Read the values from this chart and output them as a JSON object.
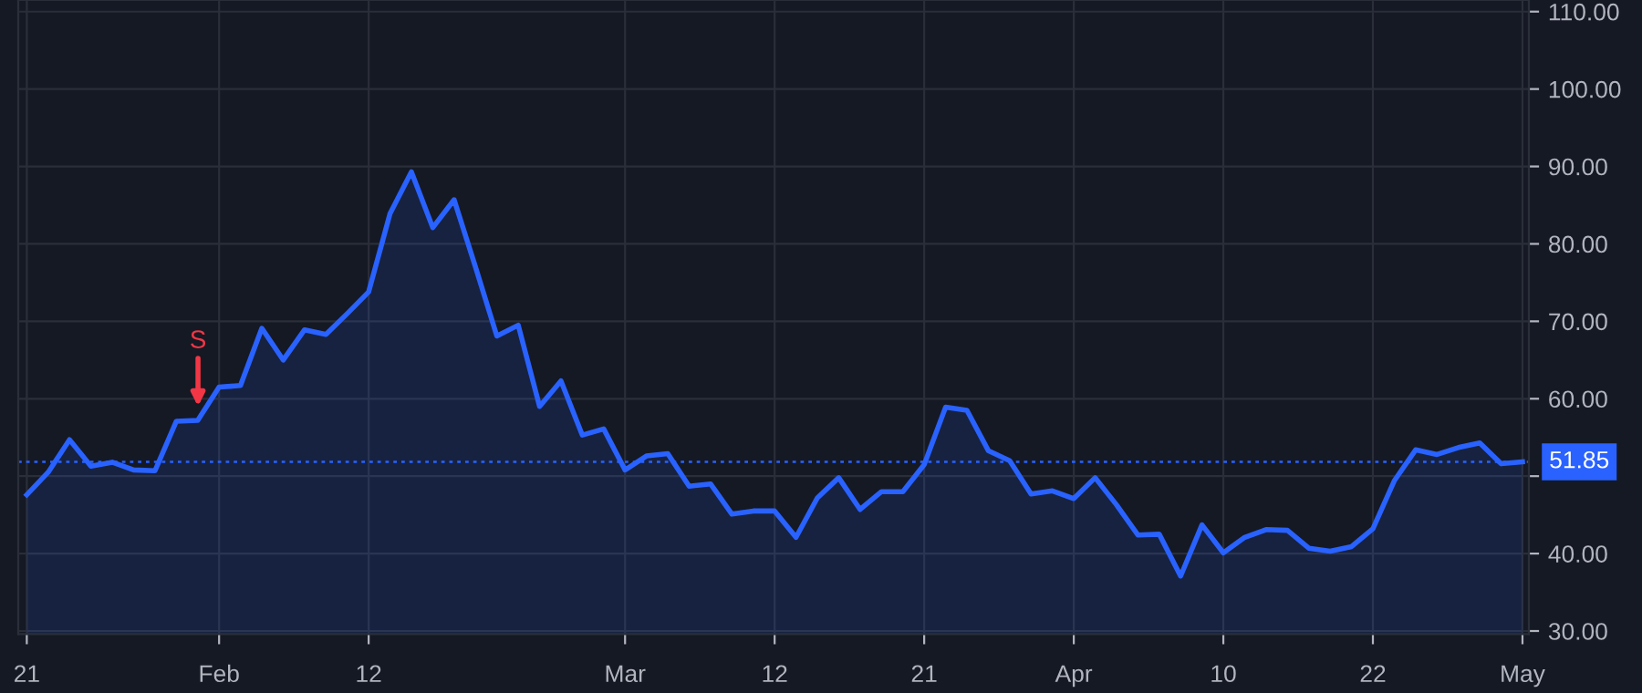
{
  "chart_data": {
    "type": "area",
    "categories": [
      "21",
      null,
      null,
      null,
      null,
      null,
      null,
      null,
      null,
      "Feb",
      null,
      null,
      null,
      null,
      null,
      null,
      "12",
      null,
      null,
      null,
      null,
      null,
      null,
      null,
      null,
      null,
      null,
      null,
      "Mar",
      null,
      null,
      null,
      null,
      null,
      null,
      "12",
      null,
      null,
      null,
      null,
      null,
      null,
      "21",
      null,
      null,
      null,
      null,
      null,
      null,
      "Apr",
      null,
      null,
      null,
      null,
      null,
      null,
      "10",
      null,
      null,
      null,
      null,
      null,
      null,
      "22",
      null,
      null,
      null,
      null,
      null,
      null,
      "May"
    ],
    "series": [
      {
        "color": "#2962ff",
        "values": [
          47.6,
          50.5,
          54.7,
          51.3,
          51.8,
          50.8,
          50.7,
          57.1,
          57.2,
          61.5,
          61.7,
          69.1,
          65.0,
          68.9,
          68.3,
          71.0,
          73.8,
          83.9,
          89.3,
          82.1,
          85.7,
          77.0,
          68.1,
          69.5,
          59.0,
          62.3,
          55.3,
          56.1,
          50.8,
          52.6,
          52.9,
          48.7,
          49.0,
          45.1,
          45.5,
          45.5,
          42.1,
          47.2,
          49.8,
          45.7,
          48.0,
          48.0,
          51.5,
          58.9,
          58.5,
          53.3,
          52.0,
          47.7,
          48.1,
          47.1,
          49.8,
          46.3,
          42.4,
          42.5,
          37.1,
          43.7,
          40.1,
          42.1,
          43.1,
          43.0,
          40.7,
          40.3,
          40.9,
          43.2,
          49.4,
          53.4,
          52.8,
          53.7,
          54.3,
          51.6,
          51.85
        ]
      }
    ],
    "ylim": [
      29.6,
      111.5
    ],
    "yticks": [
      {
        "value": 30,
        "label": "30.00"
      },
      {
        "value": 40,
        "label": "40.00"
      },
      {
        "value": 50,
        "label": null
      },
      {
        "value": 60,
        "label": "60.00"
      },
      {
        "value": 70,
        "label": "70.00"
      },
      {
        "value": 80,
        "label": "80.00"
      },
      {
        "value": 90,
        "label": "90.00"
      },
      {
        "value": 100,
        "label": "100.00"
      },
      {
        "value": 110,
        "label": "110.00"
      }
    ],
    "grid": true,
    "ref_lines": [
      {
        "axis": "y",
        "value": 51.85,
        "label": "51.85",
        "color": "#2962ff",
        "line_style": "dotted"
      }
    ],
    "annotations": [
      "S"
    ]
  }
}
